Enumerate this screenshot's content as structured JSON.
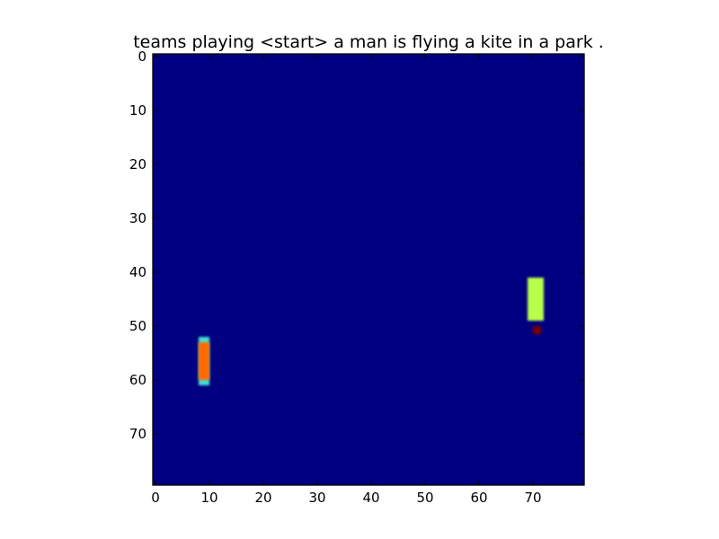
{
  "chart_data": {
    "type": "heatmap",
    "title": "teams playing <start> a man is flying a kite in a park .",
    "xlabel": "",
    "ylabel": "",
    "xlim": [
      -0.5,
      79.5
    ],
    "ylim": [
      79.5,
      -0.5
    ],
    "grid": false,
    "legend": "none",
    "colormap": "jet",
    "background_color": "#000080",
    "x_ticks": [
      "0",
      "10",
      "20",
      "30",
      "40",
      "50",
      "60",
      "70"
    ],
    "y_ticks": [
      "0",
      "10",
      "20",
      "30",
      "40",
      "50",
      "60",
      "70"
    ],
    "x_tick_values": [
      0,
      10,
      20,
      30,
      40,
      50,
      60,
      70
    ],
    "y_tick_values": [
      0,
      10,
      20,
      30,
      40,
      50,
      60,
      70
    ],
    "blobs": [
      {
        "name": "left-bar-cyan-outline",
        "x_range": [
          8,
          10
        ],
        "y_range": [
          52,
          61
        ],
        "color": "#40e0d0"
      },
      {
        "name": "left-bar-core",
        "x_range": [
          8,
          10
        ],
        "y_range": [
          53,
          60
        ],
        "color": "#ff6a00"
      },
      {
        "name": "right-bar",
        "x_range": [
          69,
          72
        ],
        "y_range": [
          41,
          49
        ],
        "color": "#b8ff48"
      },
      {
        "name": "right-dot",
        "x_range": [
          70,
          71.5
        ],
        "y_range": [
          50,
          51.5
        ],
        "color": "#7a0000"
      }
    ]
  }
}
